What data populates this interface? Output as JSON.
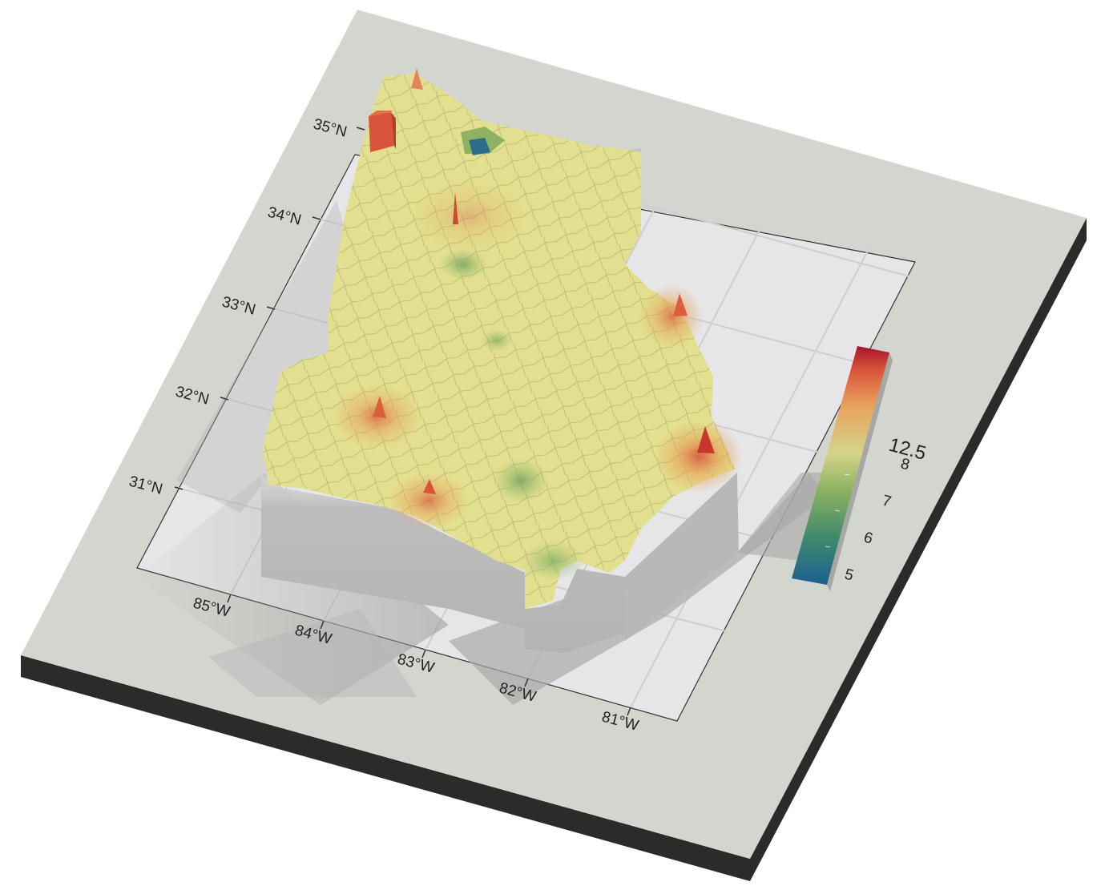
{
  "map": {
    "latitude_ticks": [
      "35°N",
      "34°N",
      "33°N",
      "32°N",
      "31°N"
    ],
    "longitude_ticks": [
      "85°W",
      "84°W",
      "83°W",
      "82°W",
      "81°W"
    ],
    "legend": {
      "title": "12.5",
      "labels": [
        "8",
        "7",
        "6",
        "5"
      ],
      "palette": [
        "#1d5f94",
        "#3f8a6b",
        "#8fb262",
        "#d4d48a",
        "#e8a25c",
        "#d9543a",
        "#a8122c"
      ]
    },
    "colors": {
      "base_top": "#d3d5cf",
      "base_side": "#2b2b2b",
      "panel": "#e6e6e8",
      "map_fill": "#e2e08e",
      "extrusion": "#b9b9b9"
    }
  }
}
